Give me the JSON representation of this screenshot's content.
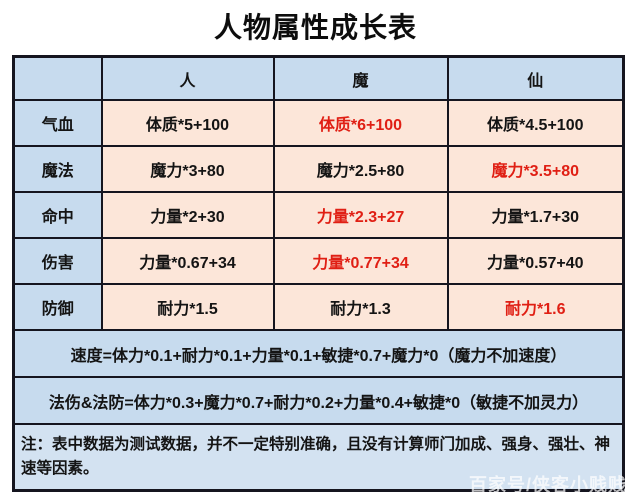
{
  "title": "人物属性成长表",
  "table": {
    "header": {
      "corner": "",
      "col_human": "人",
      "col_demon": "魔",
      "col_immortal": "仙"
    },
    "rows": [
      {
        "label": "气血",
        "cells": [
          {
            "text": "体质*5+100",
            "color": "#141414"
          },
          {
            "text": "体质*6+100",
            "color": "#e01f14"
          },
          {
            "text": "体质*4.5+100",
            "color": "#141414"
          }
        ]
      },
      {
        "label": "魔法",
        "cells": [
          {
            "text": "魔力*3+80",
            "color": "#141414"
          },
          {
            "text": "魔力*2.5+80",
            "color": "#141414"
          },
          {
            "text": "魔力*3.5+80",
            "color": "#e01f14"
          }
        ]
      },
      {
        "label": "命中",
        "cells": [
          {
            "text": "力量*2+30",
            "color": "#141414"
          },
          {
            "text": "力量*2.3+27",
            "color": "#e01f14"
          },
          {
            "text": "力量*1.7+30",
            "color": "#141414"
          }
        ]
      },
      {
        "label": "伤害",
        "cells": [
          {
            "text": "力量*0.67+34",
            "color": "#141414"
          },
          {
            "text": "力量*0.77+34",
            "color": "#e01f14"
          },
          {
            "text": "力量*0.57+40",
            "color": "#141414"
          }
        ]
      },
      {
        "label": "防御",
        "cells": [
          {
            "text": "耐力*1.5",
            "color": "#141414"
          },
          {
            "text": "耐力*1.3",
            "color": "#141414"
          },
          {
            "text": "耐力*1.6",
            "color": "#e01f14"
          }
        ]
      }
    ],
    "speed_formula": "速度=体力*0.1+耐力*0.1+力量*0.1+敏捷*0.7+魔力*0（魔力不加速度）",
    "magic_formula": "法伤&法防=体力*0.3+魔力*0.7+耐力*0.2+力量*0.4+敏捷*0（敏捷不加灵力）",
    "footnote": "注：表中数据为测试数据，并不一定特别准确，且没有计算师门加成、强身、强壮、神速等因素。"
  },
  "watermark": "百家号/侠客小贱贱",
  "colors": {
    "header_blue": "#c7dbee",
    "cell_peach": "#fce6d9",
    "note_blue": "#d3e2f1",
    "highlight_red": "#e01f14",
    "border_dark": "#15151f"
  }
}
